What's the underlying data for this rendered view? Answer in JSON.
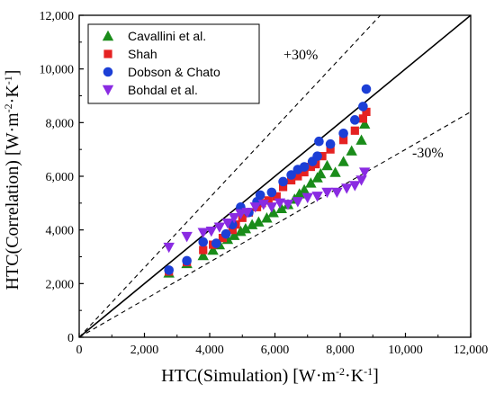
{
  "chart_data": {
    "type": "scatter",
    "xlim": [
      0,
      12000
    ],
    "ylim": [
      0,
      12000
    ],
    "x_ticks": [
      "0",
      "2,000",
      "4,000",
      "6,000",
      "8,000",
      "10,000",
      "12,000"
    ],
    "y_ticks": [
      "0",
      "2,000",
      "4,000",
      "6,000",
      "8,000",
      "10,000",
      "12,000"
    ],
    "xlabel": {
      "main": "HTC(Simulation) [W·m",
      "sup1": "-2",
      "mid": "·K",
      "sup2": "-1",
      "end": "]"
    },
    "ylabel": {
      "main": "HTC(Correlation) [W·m",
      "sup1": "-2",
      "mid": "·K",
      "sup2": "-1",
      "end": "]"
    },
    "grid": false,
    "legend_position": "top-left",
    "reference_lines": [
      {
        "label": "",
        "factor": 1.0,
        "style": "solid"
      },
      {
        "label": "+30%",
        "factor": 1.3,
        "style": "dashed"
      },
      {
        "label": "-30%",
        "factor": 0.7,
        "style": "dashed"
      }
    ],
    "series": [
      {
        "name": "Cavallini et al.",
        "marker": "triangle-up",
        "color": "#1a8c1a",
        "points": [
          [
            2750,
            2400
          ],
          [
            3300,
            2750
          ],
          [
            3800,
            3050
          ],
          [
            4100,
            3250
          ],
          [
            4300,
            3450
          ],
          [
            4550,
            3650
          ],
          [
            4750,
            3800
          ],
          [
            4950,
            3950
          ],
          [
            5100,
            4050
          ],
          [
            5300,
            4200
          ],
          [
            5500,
            4300
          ],
          [
            5750,
            4450
          ],
          [
            5950,
            4650
          ],
          [
            6200,
            4800
          ],
          [
            6400,
            4950
          ],
          [
            6600,
            5150
          ],
          [
            6750,
            5350
          ],
          [
            6900,
            5500
          ],
          [
            7100,
            5750
          ],
          [
            7300,
            5950
          ],
          [
            7400,
            6100
          ],
          [
            7600,
            6400
          ],
          [
            7850,
            6150
          ],
          [
            8100,
            6550
          ],
          [
            8350,
            6950
          ],
          [
            8650,
            7350
          ],
          [
            8750,
            7950
          ]
        ]
      },
      {
        "name": "Shah",
        "marker": "square",
        "color": "#e52222",
        "points": [
          [
            2750,
            2450
          ],
          [
            3300,
            2800
          ],
          [
            3800,
            3250
          ],
          [
            4100,
            3450
          ],
          [
            4400,
            3700
          ],
          [
            4700,
            4000
          ],
          [
            4800,
            4200
          ],
          [
            5000,
            4450
          ],
          [
            5200,
            4650
          ],
          [
            5450,
            4850
          ],
          [
            5600,
            5000
          ],
          [
            5800,
            5100
          ],
          [
            6050,
            5250
          ],
          [
            6250,
            5600
          ],
          [
            6500,
            5850
          ],
          [
            6700,
            6000
          ],
          [
            6900,
            6150
          ],
          [
            7100,
            6350
          ],
          [
            7250,
            6450
          ],
          [
            7450,
            6750
          ],
          [
            7700,
            7000
          ],
          [
            8100,
            7350
          ],
          [
            8450,
            7700
          ],
          [
            8700,
            8150
          ],
          [
            8800,
            8400
          ]
        ]
      },
      {
        "name": "Dobson & Chato",
        "marker": "circle",
        "color": "#1c3fd6",
        "points": [
          [
            2750,
            2500
          ],
          [
            3300,
            2850
          ],
          [
            3800,
            3550
          ],
          [
            4200,
            3500
          ],
          [
            4500,
            3850
          ],
          [
            4700,
            4200
          ],
          [
            4950,
            4850
          ],
          [
            5200,
            4650
          ],
          [
            5450,
            5050
          ],
          [
            5550,
            5300
          ],
          [
            5900,
            5400
          ],
          [
            6250,
            5800
          ],
          [
            6500,
            6050
          ],
          [
            6700,
            6250
          ],
          [
            6900,
            6350
          ],
          [
            7150,
            6550
          ],
          [
            7300,
            6750
          ],
          [
            7350,
            7300
          ],
          [
            7700,
            7200
          ],
          [
            8100,
            7600
          ],
          [
            8450,
            8100
          ],
          [
            8700,
            8600
          ],
          [
            8800,
            9250
          ]
        ]
      },
      {
        "name": "Bohdal et al.",
        "marker": "triangle-down",
        "color": "#8a2be2",
        "points": [
          [
            2750,
            3350
          ],
          [
            3300,
            3750
          ],
          [
            3800,
            3900
          ],
          [
            4050,
            3950
          ],
          [
            4300,
            4100
          ],
          [
            4550,
            4250
          ],
          [
            4750,
            4450
          ],
          [
            4950,
            4600
          ],
          [
            5150,
            4650
          ],
          [
            5400,
            4850
          ],
          [
            5650,
            4950
          ],
          [
            5900,
            4850
          ],
          [
            6150,
            5000
          ],
          [
            6400,
            4950
          ],
          [
            6700,
            5050
          ],
          [
            7000,
            5200
          ],
          [
            7300,
            5250
          ],
          [
            7600,
            5400
          ],
          [
            7900,
            5400
          ],
          [
            8200,
            5550
          ],
          [
            8450,
            5650
          ],
          [
            8650,
            5850
          ],
          [
            8750,
            6150
          ]
        ]
      }
    ]
  }
}
